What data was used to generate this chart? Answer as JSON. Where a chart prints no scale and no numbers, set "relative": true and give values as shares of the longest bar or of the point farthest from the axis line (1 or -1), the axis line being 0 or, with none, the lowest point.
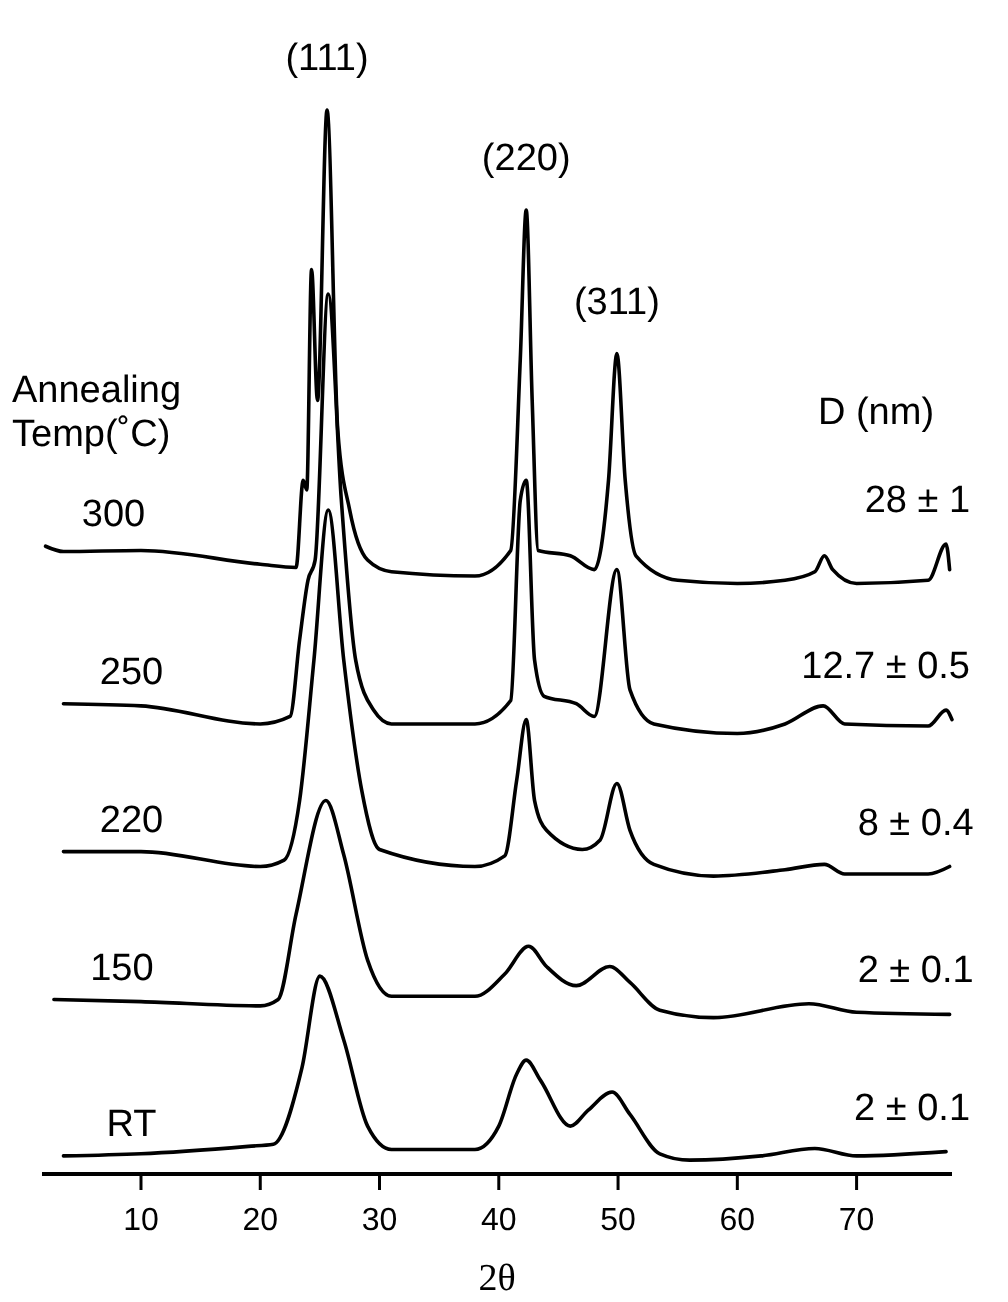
{
  "chart_data": {
    "type": "line",
    "relative": true,
    "xlabel": "2θ",
    "legend_title": "Annealing Temp(˚C)",
    "xlim": [
      1.7,
      78
    ],
    "xticks": [
      10,
      20,
      30,
      40,
      50,
      60,
      70
    ],
    "series": [
      {
        "name": "300",
        "color": "#000000",
        "x": [
          2,
          3.5,
          10,
          20,
          23,
          23.6,
          23.9,
          24.3,
          24.8,
          25.6,
          26.5,
          27.5,
          29,
          31,
          38,
          41,
          41.8,
          42.3,
          42.8,
          43.3,
          46,
          48,
          49.2,
          49.9,
          50.6,
          51.5,
          55,
          60,
          64,
          66.5,
          67.3,
          68,
          70,
          76,
          77.5,
          77.8
        ],
        "values": [
          0.59,
          0.585,
          0.586,
          0.573,
          0.57,
          0.652,
          0.643,
          0.85,
          0.727,
          1.0,
          0.699,
          0.624,
          0.577,
          0.566,
          0.562,
          0.586,
          0.765,
          0.906,
          0.727,
          0.586,
          0.581,
          0.568,
          0.652,
          0.771,
          0.652,
          0.581,
          0.558,
          0.555,
          0.558,
          0.566,
          0.581,
          0.568,
          0.555,
          0.558,
          0.592,
          0.568
        ]
      },
      {
        "name": "250",
        "color": "#000000",
        "x": [
          3.5,
          10,
          20,
          22.5,
          23.3,
          24,
          24.6,
          25.7,
          26.8,
          28,
          29.5,
          31,
          38,
          41,
          41.8,
          42.3,
          43,
          43.8,
          46.5,
          48,
          49.9,
          51,
          53,
          60,
          64,
          67.2,
          69,
          76,
          77.5,
          78
        ],
        "values": [
          0.442,
          0.44,
          0.423,
          0.43,
          0.502,
          0.558,
          0.577,
          0.827,
          0.633,
          0.483,
          0.436,
          0.423,
          0.423,
          0.445,
          0.633,
          0.652,
          0.483,
          0.449,
          0.442,
          0.43,
          0.568,
          0.455,
          0.423,
          0.414,
          0.423,
          0.44,
          0.423,
          0.421,
          0.436,
          0.427
        ]
      },
      {
        "name": "220",
        "color": "#000000",
        "x": [
          3.5,
          10,
          20,
          22,
          23.3,
          24.5,
          25.7,
          27,
          28.5,
          30,
          38,
          40.5,
          41.5,
          42.3,
          43,
          44,
          47,
          48.5,
          49.9,
          51,
          53,
          58,
          64,
          67.3,
          69,
          76,
          77.8
        ],
        "values": [
          0.303,
          0.303,
          0.289,
          0.295,
          0.351,
          0.483,
          0.624,
          0.483,
          0.361,
          0.305,
          0.289,
          0.299,
          0.37,
          0.427,
          0.351,
          0.323,
          0.305,
          0.314,
          0.367,
          0.323,
          0.291,
          0.28,
          0.286,
          0.291,
          0.282,
          0.282,
          0.289
        ]
      },
      {
        "name": "150",
        "color": "#000000",
        "x": [
          2.7,
          10,
          20,
          21.5,
          23,
          25.5,
          27,
          29,
          31,
          38,
          40.5,
          42.5,
          44,
          46.5,
          49.3,
          51,
          53.5,
          58,
          66,
          70,
          77.8
        ],
        "values": [
          0.164,
          0.162,
          0.158,
          0.164,
          0.244,
          0.351,
          0.3,
          0.201,
          0.167,
          0.167,
          0.188,
          0.214,
          0.195,
          0.177,
          0.195,
          0.18,
          0.154,
          0.147,
          0.16,
          0.152,
          0.15
        ]
      },
      {
        "name": "RT",
        "color": "#000000",
        "x": [
          3.5,
          10,
          19,
          21.1,
          23.5,
          25,
          27,
          29,
          31,
          38,
          40,
          41.5,
          42.3,
          43.5,
          46,
          47.5,
          49.5,
          51,
          53.5,
          56,
          62,
          66.5,
          70,
          77.5
        ],
        "values": [
          0.017,
          0.019,
          0.026,
          0.028,
          0.1,
          0.186,
          0.126,
          0.045,
          0.023,
          0.023,
          0.045,
          0.094,
          0.107,
          0.088,
          0.045,
          0.06,
          0.077,
          0.056,
          0.019,
          0.013,
          0.017,
          0.024,
          0.017,
          0.021
        ]
      }
    ],
    "annotations": [
      {
        "text": "(111)",
        "x": 25.6,
        "y": 1.0
      },
      {
        "text": "(220)",
        "x": 42.3,
        "y": 0.906
      },
      {
        "text": "(311)",
        "x": 49.9,
        "y": 0.771
      },
      "D (nm)",
      {
        "text": "28 ± 1",
        "x": 77.5,
        "y": 0.592
      },
      {
        "text": "12.7 ± 0.5",
        "x": 77.5,
        "y": 0.436
      },
      {
        "text": "8 ± 0.4",
        "x": 77.8,
        "y": 0.289
      },
      {
        "text": "2 ± 0.1",
        "x": 77.8,
        "y": 0.15
      },
      {
        "text": "2 ± 0.1",
        "x": 77.5,
        "y": 0.021
      }
    ]
  }
}
